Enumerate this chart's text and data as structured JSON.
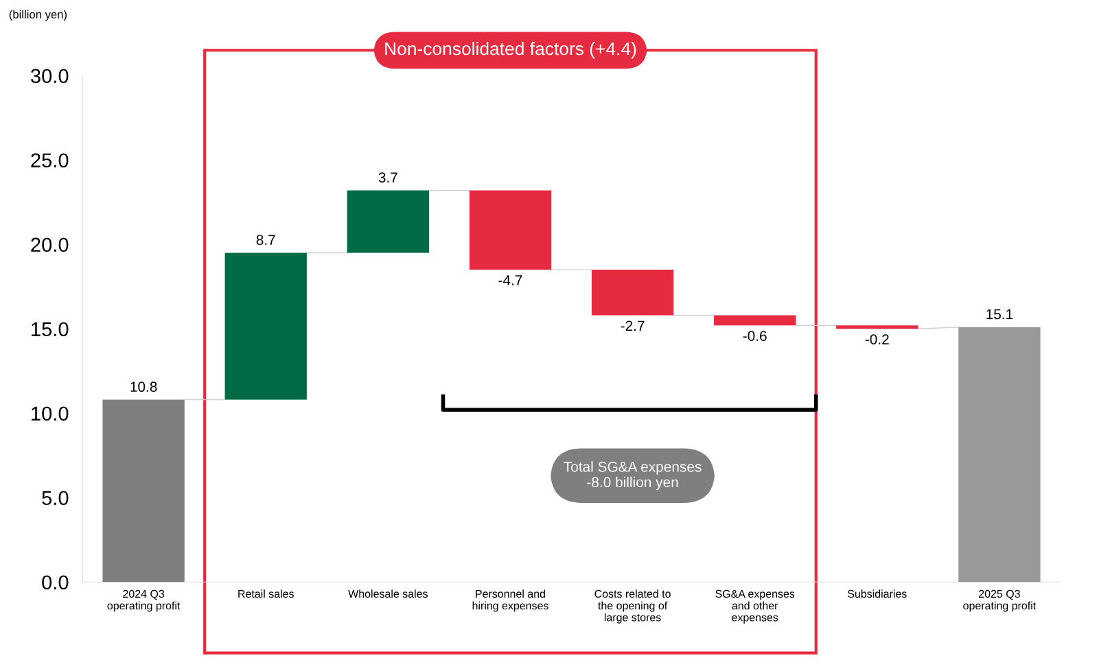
{
  "chart_data": {
    "type": "bar",
    "categories": [
      "2024 Q3\noperating profit",
      "Retail sales",
      "Wholesale sales",
      "Personnel and\nhiring expenses",
      "Costs related to\nthe opening of\nlarge stores",
      "SG&A expenses\nand other\nexpenses",
      "Subsidiaries",
      "2025 Q3\noperating profit"
    ],
    "values": [
      10.8,
      8.7,
      3.7,
      -4.7,
      -2.7,
      -0.6,
      -0.2,
      15.1
    ],
    "base": [
      0,
      10.8,
      19.5,
      23.2,
      18.5,
      15.8,
      15.2,
      0
    ],
    "colors": [
      "#7f7f7f",
      "#006b45",
      "#006b45",
      "#e62b41",
      "#e62b41",
      "#e62b41",
      "#e62b41",
      "#999999"
    ],
    "ylim": [
      0,
      30
    ],
    "yticks": [
      {
        "value": 0,
        "label": "0.0"
      },
      {
        "value": 5,
        "label": "5.0"
      },
      {
        "value": 10,
        "label": "10.0"
      },
      {
        "value": 15,
        "label": "15.0"
      },
      {
        "value": 20,
        "label": "20.0"
      },
      {
        "value": 25,
        "label": "25.0"
      },
      {
        "value": 30,
        "label": "30.0"
      }
    ],
    "data_labels": true,
    "grid": false,
    "annotations": [
      "(billion yen)",
      "Non-consolidated factors (+4.4)",
      "Total SG&A expenses\n-8.0 billion yen"
    ]
  }
}
